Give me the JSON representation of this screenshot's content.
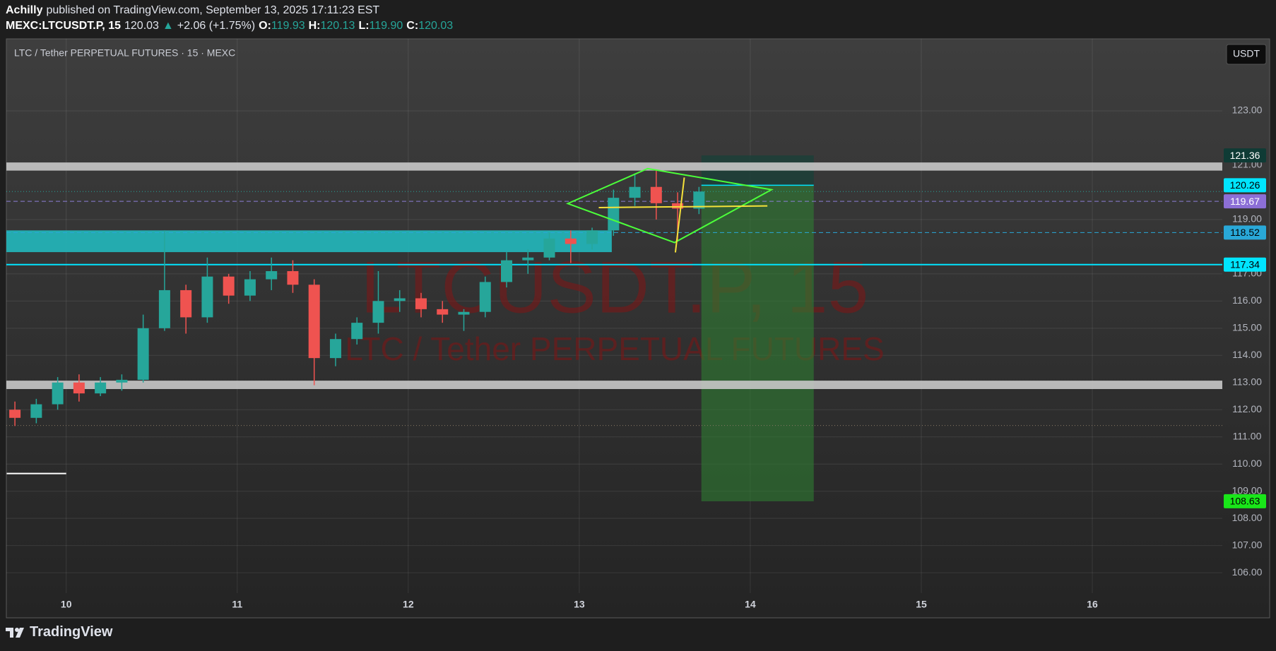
{
  "header": {
    "author": "Achilly",
    "published": "published on TradingView.com, September 13, 2025 17:11:23 EST"
  },
  "legend": {
    "symbol": "MEXC:LTCUSDT.P, 15",
    "last": "120.03",
    "change_arrow": "▲",
    "change": "+2.06 (+1.75%)",
    "o_label": "O:",
    "open": "119.93",
    "h_label": "H:",
    "high": "120.13",
    "l_label": "L:",
    "low": "119.90",
    "c_label": "C:",
    "close": "120.03"
  },
  "footer": {
    "brand": "TradingView"
  },
  "chart_data": {
    "type": "candlestick",
    "title": "LTC / Tether PERPETUAL FUTURES · 15 · MEXC",
    "currency": "USDT",
    "watermark": [
      "LTCUSDT.P, 15",
      "LTC / Tether PERPETUAL FUTURES"
    ],
    "x": [
      9.7,
      9.825,
      9.95,
      10.075,
      10.2,
      10.325,
      10.45,
      10.575,
      10.7,
      10.825,
      10.95,
      11.075,
      11.2,
      11.325,
      11.45,
      11.575,
      11.7,
      11.825,
      11.95,
      12.075,
      12.2,
      12.325,
      12.45,
      12.575,
      12.7,
      12.825,
      12.95,
      13.075,
      13.2,
      13.325,
      13.45,
      13.575,
      13.7
    ],
    "open": [
      112.0,
      111.7,
      112.2,
      113.0,
      112.6,
      113.0,
      113.1,
      115.0,
      116.4,
      115.4,
      116.9,
      116.2,
      116.8,
      117.1,
      116.6,
      113.9,
      114.6,
      115.2,
      116.0,
      116.1,
      115.7,
      115.5,
      115.6,
      116.7,
      117.5,
      117.6,
      118.3,
      118.1,
      118.6,
      119.8,
      120.2,
      119.6,
      119.4
    ],
    "high": [
      112.3,
      112.4,
      113.2,
      113.3,
      113.2,
      113.3,
      115.5,
      118.6,
      116.6,
      117.6,
      117.0,
      117.1,
      117.6,
      117.5,
      116.8,
      114.8,
      115.4,
      117.1,
      116.4,
      116.3,
      116.0,
      115.7,
      116.9,
      117.8,
      117.9,
      118.5,
      118.6,
      118.7,
      120.1,
      120.7,
      120.8,
      120.0,
      120.2
    ],
    "low": [
      111.4,
      111.5,
      112.0,
      112.3,
      112.5,
      112.7,
      113.0,
      114.9,
      114.8,
      115.2,
      115.9,
      116.0,
      116.4,
      116.3,
      112.9,
      113.6,
      114.4,
      114.8,
      115.6,
      115.4,
      115.2,
      114.9,
      115.4,
      116.5,
      117.0,
      117.5,
      117.4,
      117.9,
      118.4,
      119.5,
      119.0,
      118.2,
      119.2
    ],
    "close": [
      111.7,
      112.2,
      113.0,
      112.6,
      113.0,
      113.1,
      115.0,
      116.4,
      115.4,
      116.9,
      116.2,
      116.8,
      117.1,
      116.6,
      113.9,
      114.6,
      115.2,
      116.0,
      116.1,
      115.7,
      115.5,
      115.6,
      116.7,
      117.5,
      117.6,
      118.3,
      118.1,
      118.6,
      119.8,
      120.2,
      119.6,
      119.4,
      120.03
    ],
    "up_color": "#26a69a",
    "down_color": "#ef5350",
    "xlim": [
      9.65,
      16.76
    ],
    "xticks": [
      10,
      11,
      12,
      13,
      14,
      15,
      16
    ],
    "ylim": [
      105.25,
      125.65
    ],
    "yticks": [
      {
        "value": 123,
        "label": "123.00"
      },
      {
        "value": 121,
        "label": "121.00"
      },
      {
        "value": 119,
        "label": "119.00"
      },
      {
        "value": 117,
        "label": "117.00"
      },
      {
        "value": 116,
        "label": "116.00"
      },
      {
        "value": 115,
        "label": "115.00"
      },
      {
        "value": 114,
        "label": "114.00"
      },
      {
        "value": 113,
        "label": "113.00"
      },
      {
        "value": 112,
        "label": "112.00"
      },
      {
        "value": 111,
        "label": "111.00"
      },
      {
        "value": 110,
        "label": "110.00"
      },
      {
        "value": 109,
        "label": "109.00"
      },
      {
        "value": 108,
        "label": "108.00"
      },
      {
        "value": 107,
        "label": "107.00"
      },
      {
        "value": 106,
        "label": "106.00"
      }
    ],
    "grid": true,
    "zones": [
      {
        "x": [
          9.65,
          16.76
        ],
        "y": [
          120.8,
          121.1
        ],
        "color": "#c8c8c8"
      },
      {
        "x": [
          9.65,
          13.19
        ],
        "y": [
          117.8,
          118.6
        ],
        "color": "#22b8bd"
      },
      {
        "x": [
          9.65,
          16.76
        ],
        "y": [
          112.76,
          113.07
        ],
        "color": "#c8c8c8"
      }
    ],
    "lines": [
      {
        "y": 117.34,
        "color": "#00e5ff",
        "dash": "solid"
      },
      {
        "y": 119.67,
        "color": "#8c7fd6",
        "dash": "dashed"
      },
      {
        "y": 118.52,
        "color": "#29a8d8",
        "dash": "dashed"
      },
      {
        "y": 111.42,
        "color": "#8a7a66",
        "dash": "dotted"
      }
    ],
    "last_price_line": {
      "color": "#26a69a",
      "dash": "dotted"
    },
    "segments": [
      {
        "x": [
          9.652,
          10.0
        ],
        "y": [
          109.65,
          109.65
        ],
        "color": "#ffffff"
      }
    ],
    "polylines": [
      {
        "x": [
          12.933,
          13.4,
          14.124,
          13.557
        ],
        "y": [
          119.588,
          120.875,
          120.097,
          118.151
        ],
        "color": "#4cff3a",
        "closed": true
      },
      {
        "x": [
          13.114,
          14.1
        ],
        "y": [
          119.44,
          119.5
        ],
        "color": "#f5e13a",
        "closed": false
      },
      {
        "x": [
          13.614,
          13.562
        ],
        "y": [
          120.546,
          117.79
        ],
        "color": "#f5e13a",
        "closed": false
      }
    ],
    "position": {
      "x": [
        13.714,
        14.371
      ],
      "entry": 120.26,
      "stop": 121.36,
      "target": 108.63,
      "stop_color": "#1c3f38",
      "target_color": "#2f7d32",
      "entry_color": "#00e5ff"
    },
    "price_labels": [
      {
        "value": 121.36,
        "color": "#0f3b35",
        "text_color": "#ffffff"
      },
      {
        "value": 120.26,
        "color": "#00e5ff",
        "text_color": "#000000"
      },
      {
        "value": 119.67,
        "color": "#8c6fd6",
        "text_color": "#ffffff"
      },
      {
        "value": 118.52,
        "color": "#29a8d8",
        "text_color": "#000000"
      },
      {
        "value": 117.34,
        "color": "#00e5ff",
        "text_color": "#000000"
      },
      {
        "value": 108.63,
        "color": "#19e619",
        "text_color": "#000000"
      }
    ]
  }
}
